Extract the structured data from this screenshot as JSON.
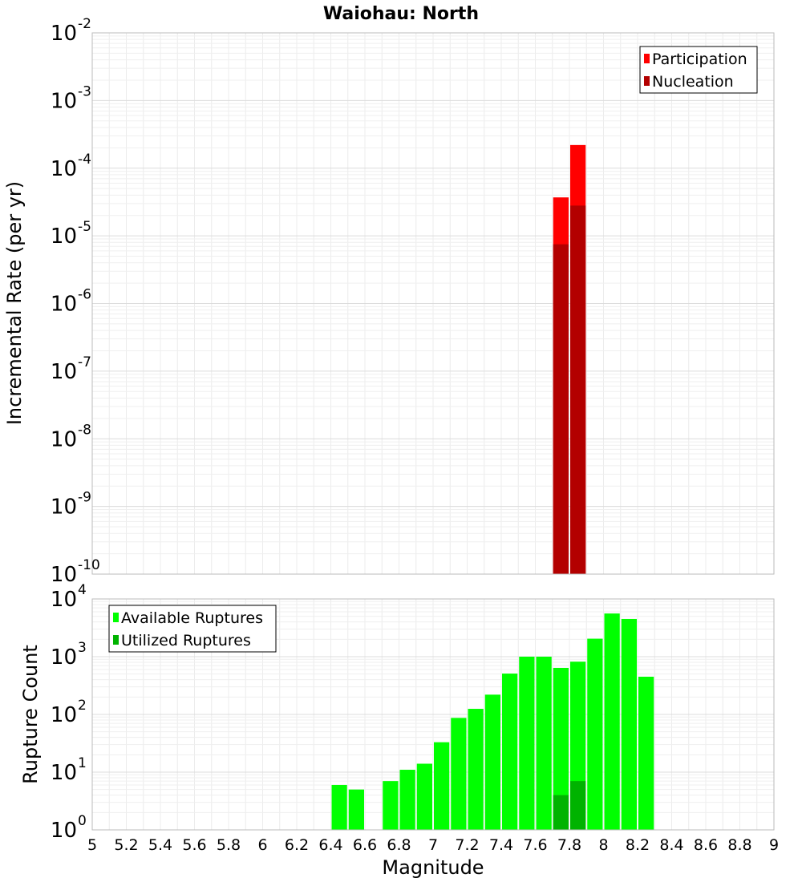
{
  "title": "Waiohau: North",
  "chart_data": [
    {
      "type": "bar",
      "scale": "log",
      "ylabel": "Incremental Rate (per yr)",
      "xlabel": "",
      "xlim": [
        5,
        9
      ],
      "ylim_exp": [
        -10,
        -2
      ],
      "y_ticks": [
        {
          "base": "10",
          "exp": "-10",
          "value_exp": -10
        },
        {
          "base": "10",
          "exp": "-9",
          "value_exp": -9
        },
        {
          "base": "10",
          "exp": "-8",
          "value_exp": -8
        },
        {
          "base": "10",
          "exp": "-7",
          "value_exp": -7
        },
        {
          "base": "10",
          "exp": "-6",
          "value_exp": -6
        },
        {
          "base": "10",
          "exp": "-5",
          "value_exp": -5
        },
        {
          "base": "10",
          "exp": "-4",
          "value_exp": -4
        },
        {
          "base": "10",
          "exp": "-3",
          "value_exp": -3
        },
        {
          "base": "10",
          "exp": "-2",
          "value_exp": -2
        }
      ],
      "legend": {
        "position": "top-right",
        "entries": [
          {
            "label": "Participation",
            "color": "#ff0000"
          },
          {
            "label": "Nucleation",
            "color": "#b30000"
          }
        ]
      },
      "series": [
        {
          "name": "Participation",
          "color": "#ff0000",
          "x": [
            7.75,
            7.85
          ],
          "values": [
            3.7e-05,
            0.00022
          ]
        },
        {
          "name": "Nucleation",
          "color": "#b30000",
          "x": [
            7.75,
            7.85
          ],
          "values": [
            7.5e-06,
            2.8e-05
          ]
        }
      ]
    },
    {
      "type": "bar",
      "scale": "log",
      "ylabel": "Rupture Count",
      "xlabel": "Magnitude",
      "xlim": [
        5,
        9
      ],
      "ylim_exp": [
        0,
        4
      ],
      "y_ticks": [
        {
          "base": "10",
          "exp": "0",
          "value_exp": 0
        },
        {
          "base": "10",
          "exp": "1",
          "value_exp": 1
        },
        {
          "base": "10",
          "exp": "2",
          "value_exp": 2
        },
        {
          "base": "10",
          "exp": "3",
          "value_exp": 3
        },
        {
          "base": "10",
          "exp": "4",
          "value_exp": 4
        }
      ],
      "x_ticks": [
        "5",
        "5.2",
        "5.4",
        "5.6",
        "5.8",
        "6",
        "6.2",
        "6.4",
        "6.6",
        "6.8",
        "7",
        "7.2",
        "7.4",
        "7.6",
        "7.8",
        "8",
        "8.2",
        "8.4",
        "8.6",
        "8.8",
        "9"
      ],
      "legend": {
        "position": "top-left",
        "entries": [
          {
            "label": "Available Ruptures",
            "color": "#00ff00"
          },
          {
            "label": "Utilized Ruptures",
            "color": "#00b300"
          }
        ]
      },
      "series": [
        {
          "name": "Available Ruptures",
          "color": "#00ff00",
          "x": [
            6.45,
            6.55,
            6.75,
            6.85,
            6.95,
            7.05,
            7.15,
            7.25,
            7.35,
            7.45,
            7.55,
            7.65,
            7.75,
            7.85,
            7.95,
            8.05,
            8.15,
            8.25
          ],
          "values": [
            6,
            5,
            7,
            11,
            14,
            33,
            87,
            125,
            220,
            510,
            1000,
            1000,
            640,
            820,
            2050,
            5600,
            4500,
            450
          ]
        },
        {
          "name": "Utilized Ruptures",
          "color": "#00b300",
          "x": [
            7.75,
            7.85
          ],
          "values": [
            4,
            7
          ]
        }
      ]
    }
  ]
}
